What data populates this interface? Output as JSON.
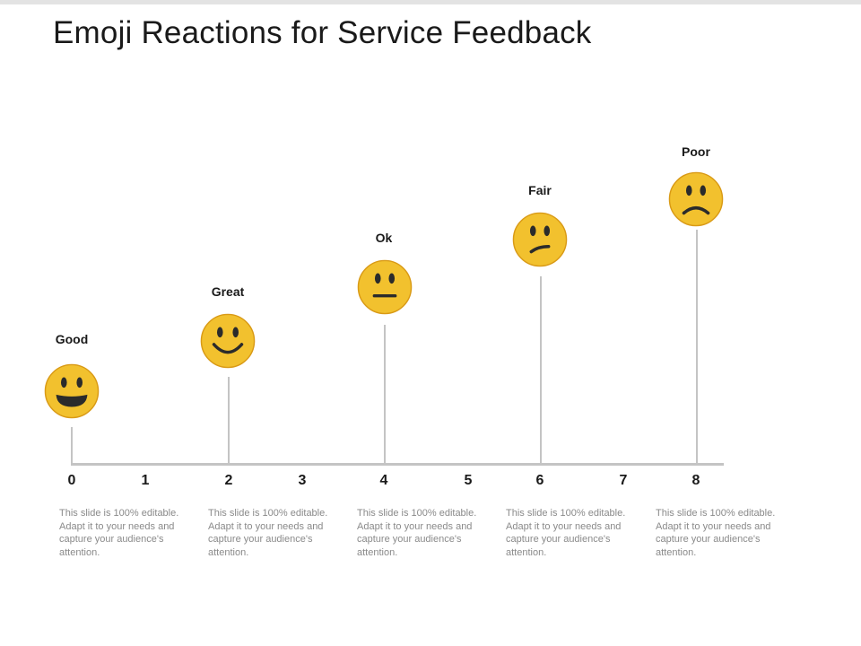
{
  "title": "Emoji Reactions for Service Feedback",
  "axis": {
    "ticks": [
      "0",
      "1",
      "2",
      "3",
      "4",
      "5",
      "6",
      "7",
      "8"
    ]
  },
  "reactions": [
    {
      "label": "Good",
      "position": 0,
      "face": "grinning-face-icon"
    },
    {
      "label": "Great",
      "position": 2,
      "face": "smiling-face-icon"
    },
    {
      "label": "Ok",
      "position": 4,
      "face": "neutral-face-icon"
    },
    {
      "label": "Fair",
      "position": 6,
      "face": "confused-face-icon"
    },
    {
      "label": "Poor",
      "position": 8,
      "face": "frowning-face-icon"
    }
  ],
  "descriptions": [
    "This slide is 100% editable. Adapt it to your needs and capture your audience's attention.",
    "This slide is 100% editable. Adapt it to your needs and capture your audience's attention.",
    "This slide is 100% editable. Adapt it to your needs and capture your audience's attention.",
    "This slide is 100% editable. Adapt it to your needs and capture your audience's attention.",
    "This slide is 100% editable. Adapt it to your needs and capture your audience's attention."
  ],
  "colors": {
    "face_fill": "#f2c12e",
    "face_edge": "#d99a16",
    "feature": "#2b2b2b",
    "line": "#c4c4c4"
  }
}
